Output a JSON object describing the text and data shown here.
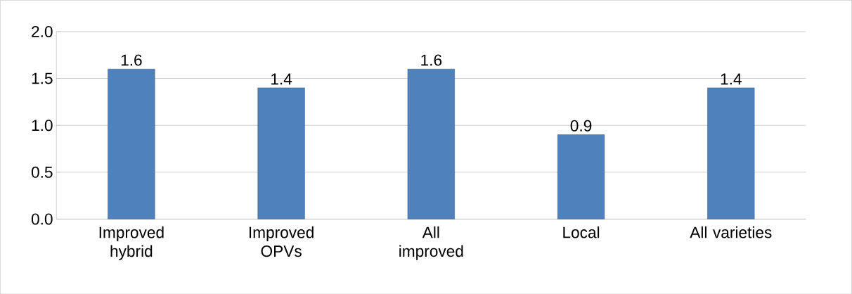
{
  "chart_data": {
    "type": "bar",
    "categories": [
      "Improved hybrid",
      "Improved OPVs",
      "All improved",
      "Local",
      "All varieties"
    ],
    "values": [
      1.6,
      1.4,
      1.6,
      0.9,
      1.4
    ],
    "color": "#4f81bd",
    "ylim": [
      0,
      2
    ],
    "yticks": [
      {
        "value": 0,
        "label": "0.0"
      },
      {
        "value": 0.5,
        "label": "0.5"
      },
      {
        "value": 1,
        "label": "1.0"
      },
      {
        "value": 1.5,
        "label": "1.5"
      },
      {
        "value": 2,
        "label": "2.0"
      }
    ],
    "grid": "y",
    "data_labels": true
  }
}
